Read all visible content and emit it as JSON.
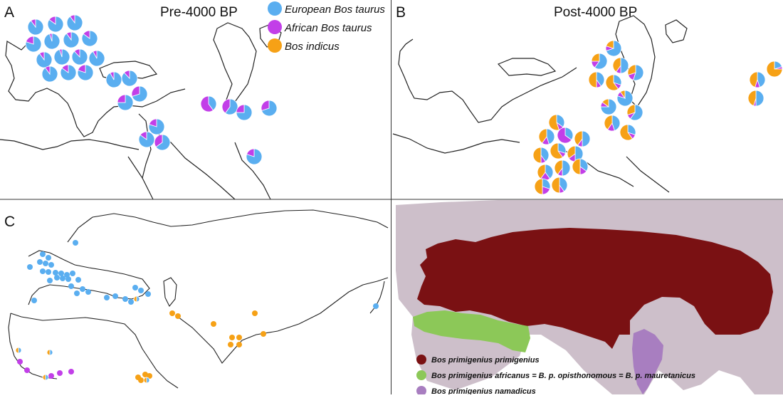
{
  "colors": {
    "european": "#5aaef0",
    "african": "#c23fe8",
    "indicus": "#f6a116",
    "primigenius": "#7a1113",
    "africanus": "#8cc858",
    "namadicus": "#a87ec0",
    "land_background": "#cdbfca",
    "coast": "#222222"
  },
  "panels": {
    "a": {
      "letter": "A",
      "title": "Pre-4000 BP"
    },
    "b": {
      "letter": "B",
      "title": "Post-4000 BP"
    },
    "c": {
      "letter": "C"
    }
  },
  "legend_top": [
    {
      "label": "European Bos taurus",
      "color_key": "european"
    },
    {
      "label": "African Bos taurus",
      "color_key": "african"
    },
    {
      "label": "Bos indicus",
      "color_key": "indicus"
    }
  ],
  "legend_range": [
    {
      "label": "Bos primigenius primigenius",
      "color_key": "primigenius"
    },
    {
      "label": "Bos primigenius africanus = B. p. opisthonomous = B. p. mauretanicus",
      "color_key": "africanus"
    },
    {
      "label": "Bos primigenius namadicus",
      "color_key": "namadicus"
    }
  ],
  "samples": {
    "pre_4000": [
      {
        "european": 0.9,
        "african": 0.1,
        "indicus": 0.0
      },
      {
        "european": 0.85,
        "african": 0.15,
        "indicus": 0.0
      },
      {
        "european": 0.9,
        "african": 0.1,
        "indicus": 0.0
      },
      {
        "european": 0.8,
        "african": 0.2,
        "indicus": 0.0
      },
      {
        "european": 0.95,
        "african": 0.05,
        "indicus": 0.0
      },
      {
        "european": 0.9,
        "african": 0.1,
        "indicus": 0.0
      },
      {
        "european": 0.85,
        "african": 0.15,
        "indicus": 0.0
      },
      {
        "european": 0.9,
        "african": 0.1,
        "indicus": 0.0
      },
      {
        "european": 0.95,
        "african": 0.05,
        "indicus": 0.0
      },
      {
        "european": 0.88,
        "african": 0.12,
        "indicus": 0.0
      },
      {
        "european": 0.92,
        "african": 0.08,
        "indicus": 0.0
      },
      {
        "european": 0.9,
        "african": 0.1,
        "indicus": 0.0
      },
      {
        "european": 0.85,
        "african": 0.15,
        "indicus": 0.0
      },
      {
        "european": 0.8,
        "african": 0.2,
        "indicus": 0.0
      },
      {
        "european": 0.92,
        "african": 0.08,
        "indicus": 0.0
      },
      {
        "european": 0.88,
        "african": 0.12,
        "indicus": 0.0
      },
      {
        "european": 0.75,
        "african": 0.25,
        "indicus": 0.0
      },
      {
        "european": 0.7,
        "african": 0.3,
        "indicus": 0.0
      },
      {
        "european": 0.8,
        "african": 0.2,
        "indicus": 0.0
      },
      {
        "european": 0.85,
        "african": 0.15,
        "indicus": 0.0
      },
      {
        "european": 0.65,
        "african": 0.35,
        "indicus": 0.0
      },
      {
        "european": 0.4,
        "african": 0.6,
        "indicus": 0.0
      },
      {
        "european": 0.6,
        "african": 0.4,
        "indicus": 0.0
      },
      {
        "european": 0.75,
        "african": 0.25,
        "indicus": 0.0
      },
      {
        "european": 0.7,
        "african": 0.3,
        "indicus": 0.0
      },
      {
        "european": 0.8,
        "african": 0.2,
        "indicus": 0.0
      },
      {
        "european": 0.88,
        "african": 0.12,
        "indicus": 0.0
      },
      {
        "european": 0.82,
        "african": 0.18,
        "indicus": 0.0
      }
    ],
    "post_4000": [
      {
        "european": 0.7,
        "african": 0.1,
        "indicus": 0.2
      },
      {
        "european": 0.6,
        "african": 0.15,
        "indicus": 0.25
      },
      {
        "european": 0.5,
        "african": 0.1,
        "indicus": 0.4
      },
      {
        "european": 0.55,
        "african": 0.15,
        "indicus": 0.3
      },
      {
        "european": 0.4,
        "african": 0.1,
        "indicus": 0.5
      },
      {
        "european": 0.3,
        "african": 0.1,
        "indicus": 0.6
      },
      {
        "european": 0.2,
        "african": 0.05,
        "indicus": 0.75
      },
      {
        "european": 0.45,
        "african": 0.1,
        "indicus": 0.45
      },
      {
        "european": 0.5,
        "african": 0.05,
        "indicus": 0.45
      },
      {
        "european": 0.75,
        "african": 0.1,
        "indicus": 0.15
      },
      {
        "european": 0.8,
        "african": 0.1,
        "indicus": 0.1
      },
      {
        "european": 0.6,
        "african": 0.1,
        "indicus": 0.3
      },
      {
        "european": 0.45,
        "african": 0.15,
        "indicus": 0.4
      },
      {
        "european": 0.3,
        "african": 0.1,
        "indicus": 0.6
      },
      {
        "european": 0.35,
        "african": 0.1,
        "indicus": 0.55
      },
      {
        "european": 0.45,
        "african": 0.15,
        "indicus": 0.4
      },
      {
        "european": 0.35,
        "african": 0.65,
        "indicus": 0.0
      },
      {
        "european": 0.5,
        "african": 0.1,
        "indicus": 0.4
      },
      {
        "european": 0.4,
        "african": 0.1,
        "indicus": 0.5
      },
      {
        "european": 0.3,
        "african": 0.1,
        "indicus": 0.6
      },
      {
        "european": 0.5,
        "african": 0.15,
        "indicus": 0.35
      },
      {
        "european": 0.4,
        "african": 0.2,
        "indicus": 0.4
      },
      {
        "european": 0.5,
        "african": 0.1,
        "indicus": 0.4
      },
      {
        "european": 0.35,
        "african": 0.15,
        "indicus": 0.5
      },
      {
        "european": 0.3,
        "african": 0.2,
        "indicus": 0.5
      },
      {
        "european": 0.4,
        "african": 0.1,
        "indicus": 0.5
      },
      {
        "european": 0.5,
        "african": 0.1,
        "indicus": 0.4
      },
      {
        "european": 0.2,
        "african": 0.1,
        "indicus": 0.7
      },
      {
        "european": 0.15,
        "african": 0.05,
        "indicus": 0.8
      },
      {
        "european": 0.3,
        "african": 0.1,
        "indicus": 0.6
      }
    ],
    "dots": [
      "european",
      "european",
      "european",
      "european",
      "european",
      "european",
      "european",
      "european",
      "european",
      "european",
      "european",
      "european",
      "european",
      "european",
      "european",
      "european",
      "european",
      "european",
      "european",
      "european",
      "european",
      "european",
      "european",
      "european",
      "european",
      "european",
      "european",
      "european",
      "european",
      "european",
      "mixed",
      "indicus",
      "indicus",
      "indicus",
      "indicus",
      "indicus",
      "indicus",
      "indicus",
      "indicus",
      "indicus",
      "indicus",
      "indicus",
      "indicus",
      "indicus",
      "mixed",
      "african",
      "african",
      "african",
      "african",
      "african",
      "mixed",
      "mixed",
      "mixed",
      "european"
    ]
  }
}
